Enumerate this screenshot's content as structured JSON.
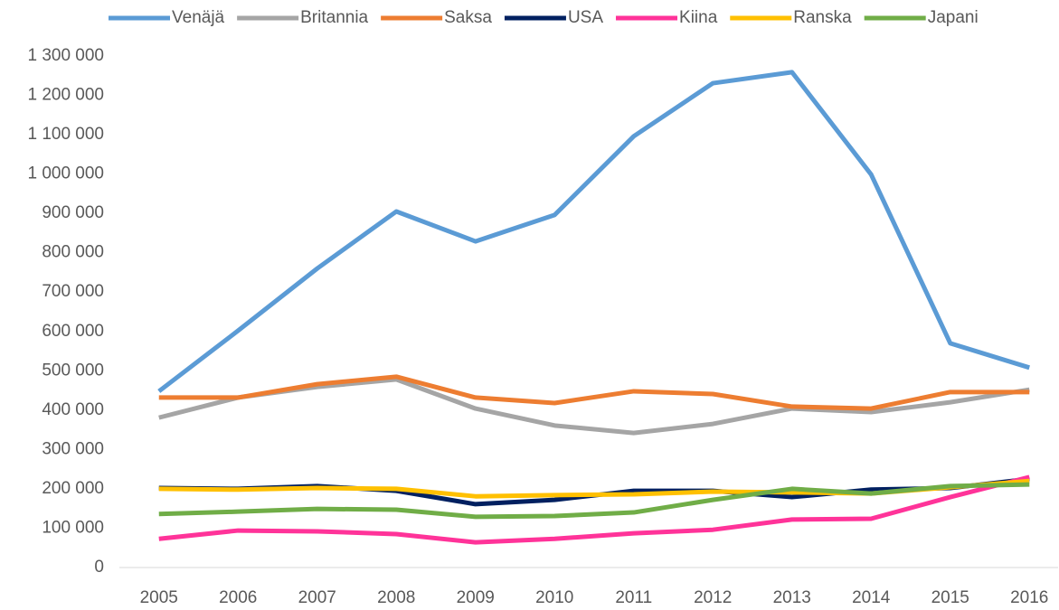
{
  "chart_data": {
    "type": "line",
    "categories": [
      "2005",
      "2006",
      "2007",
      "2008",
      "2009",
      "2010",
      "2011",
      "2012",
      "2013",
      "2014",
      "2015",
      "2016"
    ],
    "series": [
      {
        "name": "Venäjä",
        "color": "#5b9bd5",
        "values": [
          448000,
          602000,
          760000,
          905000,
          829000,
          896000,
          1096000,
          1231000,
          1259000,
          999000,
          570000,
          508000
        ]
      },
      {
        "name": "Britannia",
        "color": "#a5a5a5",
        "values": [
          381000,
          432000,
          459000,
          478000,
          404000,
          361000,
          342000,
          365000,
          404000,
          395000,
          420000,
          452000
        ]
      },
      {
        "name": "Saksa",
        "color": "#ed7d31",
        "values": [
          432000,
          432000,
          466000,
          485000,
          432000,
          418000,
          448000,
          441000,
          409000,
          404000,
          446000,
          446000
        ]
      },
      {
        "name": "USA",
        "color": "#002060",
        "values": [
          202000,
          200000,
          207000,
          195000,
          161000,
          172000,
          195000,
          195000,
          179000,
          198000,
          202000,
          225000
        ]
      },
      {
        "name": "Kiina",
        "color": "#ff3399",
        "values": [
          73000,
          94000,
          92000,
          85000,
          64000,
          73000,
          87000,
          96000,
          122000,
          124000,
          179000,
          230000
        ]
      },
      {
        "name": "Ranska",
        "color": "#ffc000",
        "values": [
          200000,
          198000,
          202000,
          200000,
          181000,
          184000,
          186000,
          193000,
          191000,
          188000,
          204000,
          220000
        ]
      },
      {
        "name": "Japani",
        "color": "#70ad47",
        "values": [
          136000,
          142000,
          149000,
          147000,
          129000,
          131000,
          140000,
          172000,
          200000,
          188000,
          207000,
          211000
        ]
      }
    ],
    "ylim": [
      0,
      1300000
    ],
    "yticks": [
      0,
      {
        "value": 100000,
        "label": "100 000"
      },
      {
        "value": 200000,
        "label": "200 000"
      },
      {
        "value": 300000,
        "label": "300 000"
      },
      {
        "value": 400000,
        "label": "400 000"
      },
      {
        "value": 500000,
        "label": "500 000"
      },
      {
        "value": 600000,
        "label": "600 000"
      },
      {
        "value": 700000,
        "label": "700 000"
      },
      {
        "value": 800000,
        "label": "800 000"
      },
      {
        "value": 900000,
        "label": "900 000"
      },
      {
        "value": 1000000,
        "label": "1 000 000"
      },
      {
        "value": 1100000,
        "label": "1 100 000"
      },
      {
        "value": 1200000,
        "label": "1 200 000"
      },
      {
        "value": 1300000,
        "label": "1 300 000"
      }
    ],
    "grid": false,
    "legend": "top"
  }
}
